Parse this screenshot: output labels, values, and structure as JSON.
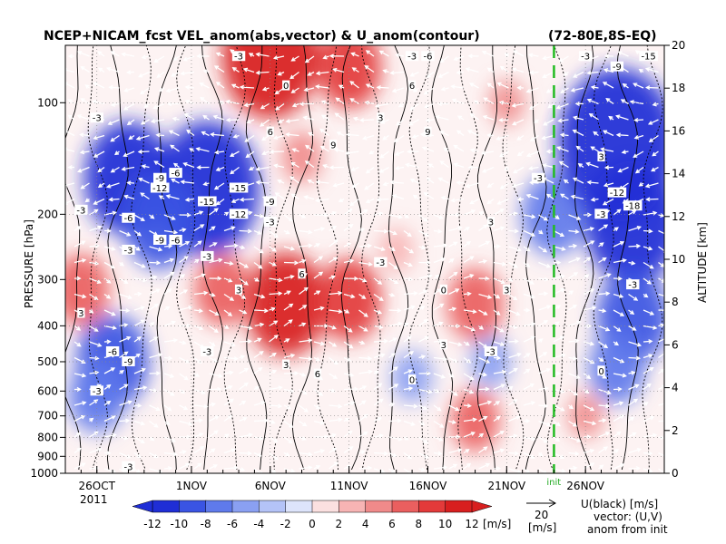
{
  "chart_data": {
    "type": "heatmap",
    "title": "NCEP+NICAM_fcst VEL_anom(abs,vector) & U_anom(contour)",
    "region": "(72-80E,8S-EQ)",
    "ylabel": "PRESSURE [hPa]",
    "ylabel_right": "ALTITUDE [km]",
    "x_ticks": [
      "26OCT",
      "1NOV",
      "6NOV",
      "11NOV",
      "16NOV",
      "21NOV",
      "26NOV"
    ],
    "x_year": "2011",
    "x_range_days": [
      0,
      38
    ],
    "x_tick_days": [
      2,
      8,
      13,
      18,
      23,
      28,
      33
    ],
    "y_ticks": [
      100,
      200,
      300,
      400,
      500,
      600,
      700,
      800,
      900,
      1000
    ],
    "y_range_hpa": [
      1000,
      70
    ],
    "y2_ticks": [
      0,
      2,
      4,
      6,
      8,
      10,
      12,
      14,
      16,
      18,
      20
    ],
    "init_day": 31,
    "init_label": "init",
    "colorbar": {
      "ticks": [
        -12,
        -10,
        -8,
        -6,
        -4,
        -2,
        0,
        2,
        4,
        6,
        8,
        10,
        12
      ],
      "unit": "[m/s]",
      "colors": [
        "#1f2ed6",
        "#3a54e3",
        "#5f7aeb",
        "#8aa0f2",
        "#b4c3f7",
        "#dde4fb",
        "#fbe0e0",
        "#f7b4b4",
        "#f08a8a",
        "#ea5f5f",
        "#e33a3a",
        "#d81f1f"
      ]
    },
    "vector_ref": {
      "value": "20",
      "unit": "[m/s]"
    },
    "legend_notes": [
      "U(black) [m/s]",
      "vector: (U,V)",
      "anom from init"
    ],
    "anomaly_patches": [
      {
        "x": 4,
        "y": 160,
        "v": -11
      },
      {
        "x": 9,
        "y": 170,
        "v": -13
      },
      {
        "x": 6,
        "y": 210,
        "v": -9
      },
      {
        "x": 3,
        "y": 500,
        "v": -9
      },
      {
        "x": 2,
        "y": 620,
        "v": -7
      },
      {
        "x": 15,
        "y": 140,
        "v": 5
      },
      {
        "x": 21,
        "y": 250,
        "v": 3
      },
      {
        "x": 31,
        "y": 200,
        "v": -8
      },
      {
        "x": 35,
        "y": 130,
        "v": -15
      },
      {
        "x": 36,
        "y": 210,
        "v": -12
      },
      {
        "x": 36,
        "y": 380,
        "v": -9
      },
      {
        "x": 35,
        "y": 520,
        "v": -7
      },
      {
        "x": 14,
        "y": 350,
        "v": 10
      },
      {
        "x": 10,
        "y": 320,
        "v": 7
      },
      {
        "x": 18,
        "y": 340,
        "v": 8
      },
      {
        "x": 26,
        "y": 350,
        "v": 7
      },
      {
        "x": 1,
        "y": 320,
        "v": 7
      },
      {
        "x": 26,
        "y": 720,
        "v": 6
      },
      {
        "x": 18,
        "y": 80,
        "v": 8
      },
      {
        "x": 13,
        "y": 75,
        "v": 12
      },
      {
        "x": 33,
        "y": 700,
        "v": 4
      },
      {
        "x": 22,
        "y": 550,
        "v": -5
      },
      {
        "x": 27,
        "y": 500,
        "v": -5
      },
      {
        "x": 28,
        "y": 100,
        "v": 4
      }
    ],
    "contour_labels": [
      {
        "x": 11,
        "y": 75,
        "t": "-3"
      },
      {
        "x": 23,
        "y": 75,
        "t": "-6"
      },
      {
        "x": 22,
        "y": 75,
        "t": "-3"
      },
      {
        "x": 2,
        "y": 110,
        "t": "-3"
      },
      {
        "x": 6,
        "y": 160,
        "t": "-9"
      },
      {
        "x": 7,
        "y": 155,
        "t": "-6"
      },
      {
        "x": 6,
        "y": 170,
        "t": "-12"
      },
      {
        "x": 11,
        "y": 170,
        "t": "-15"
      },
      {
        "x": 9,
        "y": 185,
        "t": "-15"
      },
      {
        "x": 13,
        "y": 185,
        "t": "-9"
      },
      {
        "x": 1,
        "y": 195,
        "t": "-3"
      },
      {
        "x": 4,
        "y": 205,
        "t": "-6"
      },
      {
        "x": 11,
        "y": 200,
        "t": "-12"
      },
      {
        "x": 6,
        "y": 235,
        "t": "-9"
      },
      {
        "x": 7,
        "y": 235,
        "t": "-6"
      },
      {
        "x": 9,
        "y": 260,
        "t": "-3"
      },
      {
        "x": 13,
        "y": 210,
        "t": "-3"
      },
      {
        "x": 4,
        "y": 250,
        "t": "-3"
      },
      {
        "x": 13,
        "y": 120,
        "t": "6"
      },
      {
        "x": 14,
        "y": 90,
        "t": "0"
      },
      {
        "x": 17,
        "y": 130,
        "t": "9"
      },
      {
        "x": 20,
        "y": 110,
        "t": "3"
      },
      {
        "x": 22,
        "y": 90,
        "t": "6"
      },
      {
        "x": 23,
        "y": 120,
        "t": "9"
      },
      {
        "x": 20,
        "y": 270,
        "t": "-3"
      },
      {
        "x": 27,
        "y": 210,
        "t": "3"
      },
      {
        "x": 30,
        "y": 160,
        "t": "-3"
      },
      {
        "x": 15,
        "y": 290,
        "t": "6"
      },
      {
        "x": 11,
        "y": 320,
        "t": "3"
      },
      {
        "x": 1,
        "y": 370,
        "t": "3"
      },
      {
        "x": 24,
        "y": 320,
        "t": "0"
      },
      {
        "x": 28,
        "y": 320,
        "t": "3"
      },
      {
        "x": 3,
        "y": 470,
        "t": "-6"
      },
      {
        "x": 4,
        "y": 500,
        "t": "-9"
      },
      {
        "x": 2,
        "y": 600,
        "t": "-3"
      },
      {
        "x": 9,
        "y": 470,
        "t": "-3"
      },
      {
        "x": 14,
        "y": 510,
        "t": "3"
      },
      {
        "x": 16,
        "y": 540,
        "t": "6"
      },
      {
        "x": 24,
        "y": 450,
        "t": "3"
      },
      {
        "x": 22,
        "y": 560,
        "t": "0"
      },
      {
        "x": 27,
        "y": 470,
        "t": "-3"
      },
      {
        "x": 4,
        "y": 960,
        "t": "-3"
      },
      {
        "x": 35,
        "y": 175,
        "t": "-12"
      },
      {
        "x": 36,
        "y": 190,
        "t": "-18"
      },
      {
        "x": 34,
        "y": 200,
        "t": "-3"
      },
      {
        "x": 36,
        "y": 310,
        "t": "-3"
      },
      {
        "x": 34,
        "y": 530,
        "t": "0"
      },
      {
        "x": 33,
        "y": 75,
        "t": "-3"
      },
      {
        "x": 35,
        "y": 80,
        "t": "-9"
      },
      {
        "x": 37,
        "y": 75,
        "t": "-15"
      },
      {
        "x": 34,
        "y": 140,
        "t": "3"
      }
    ]
  }
}
